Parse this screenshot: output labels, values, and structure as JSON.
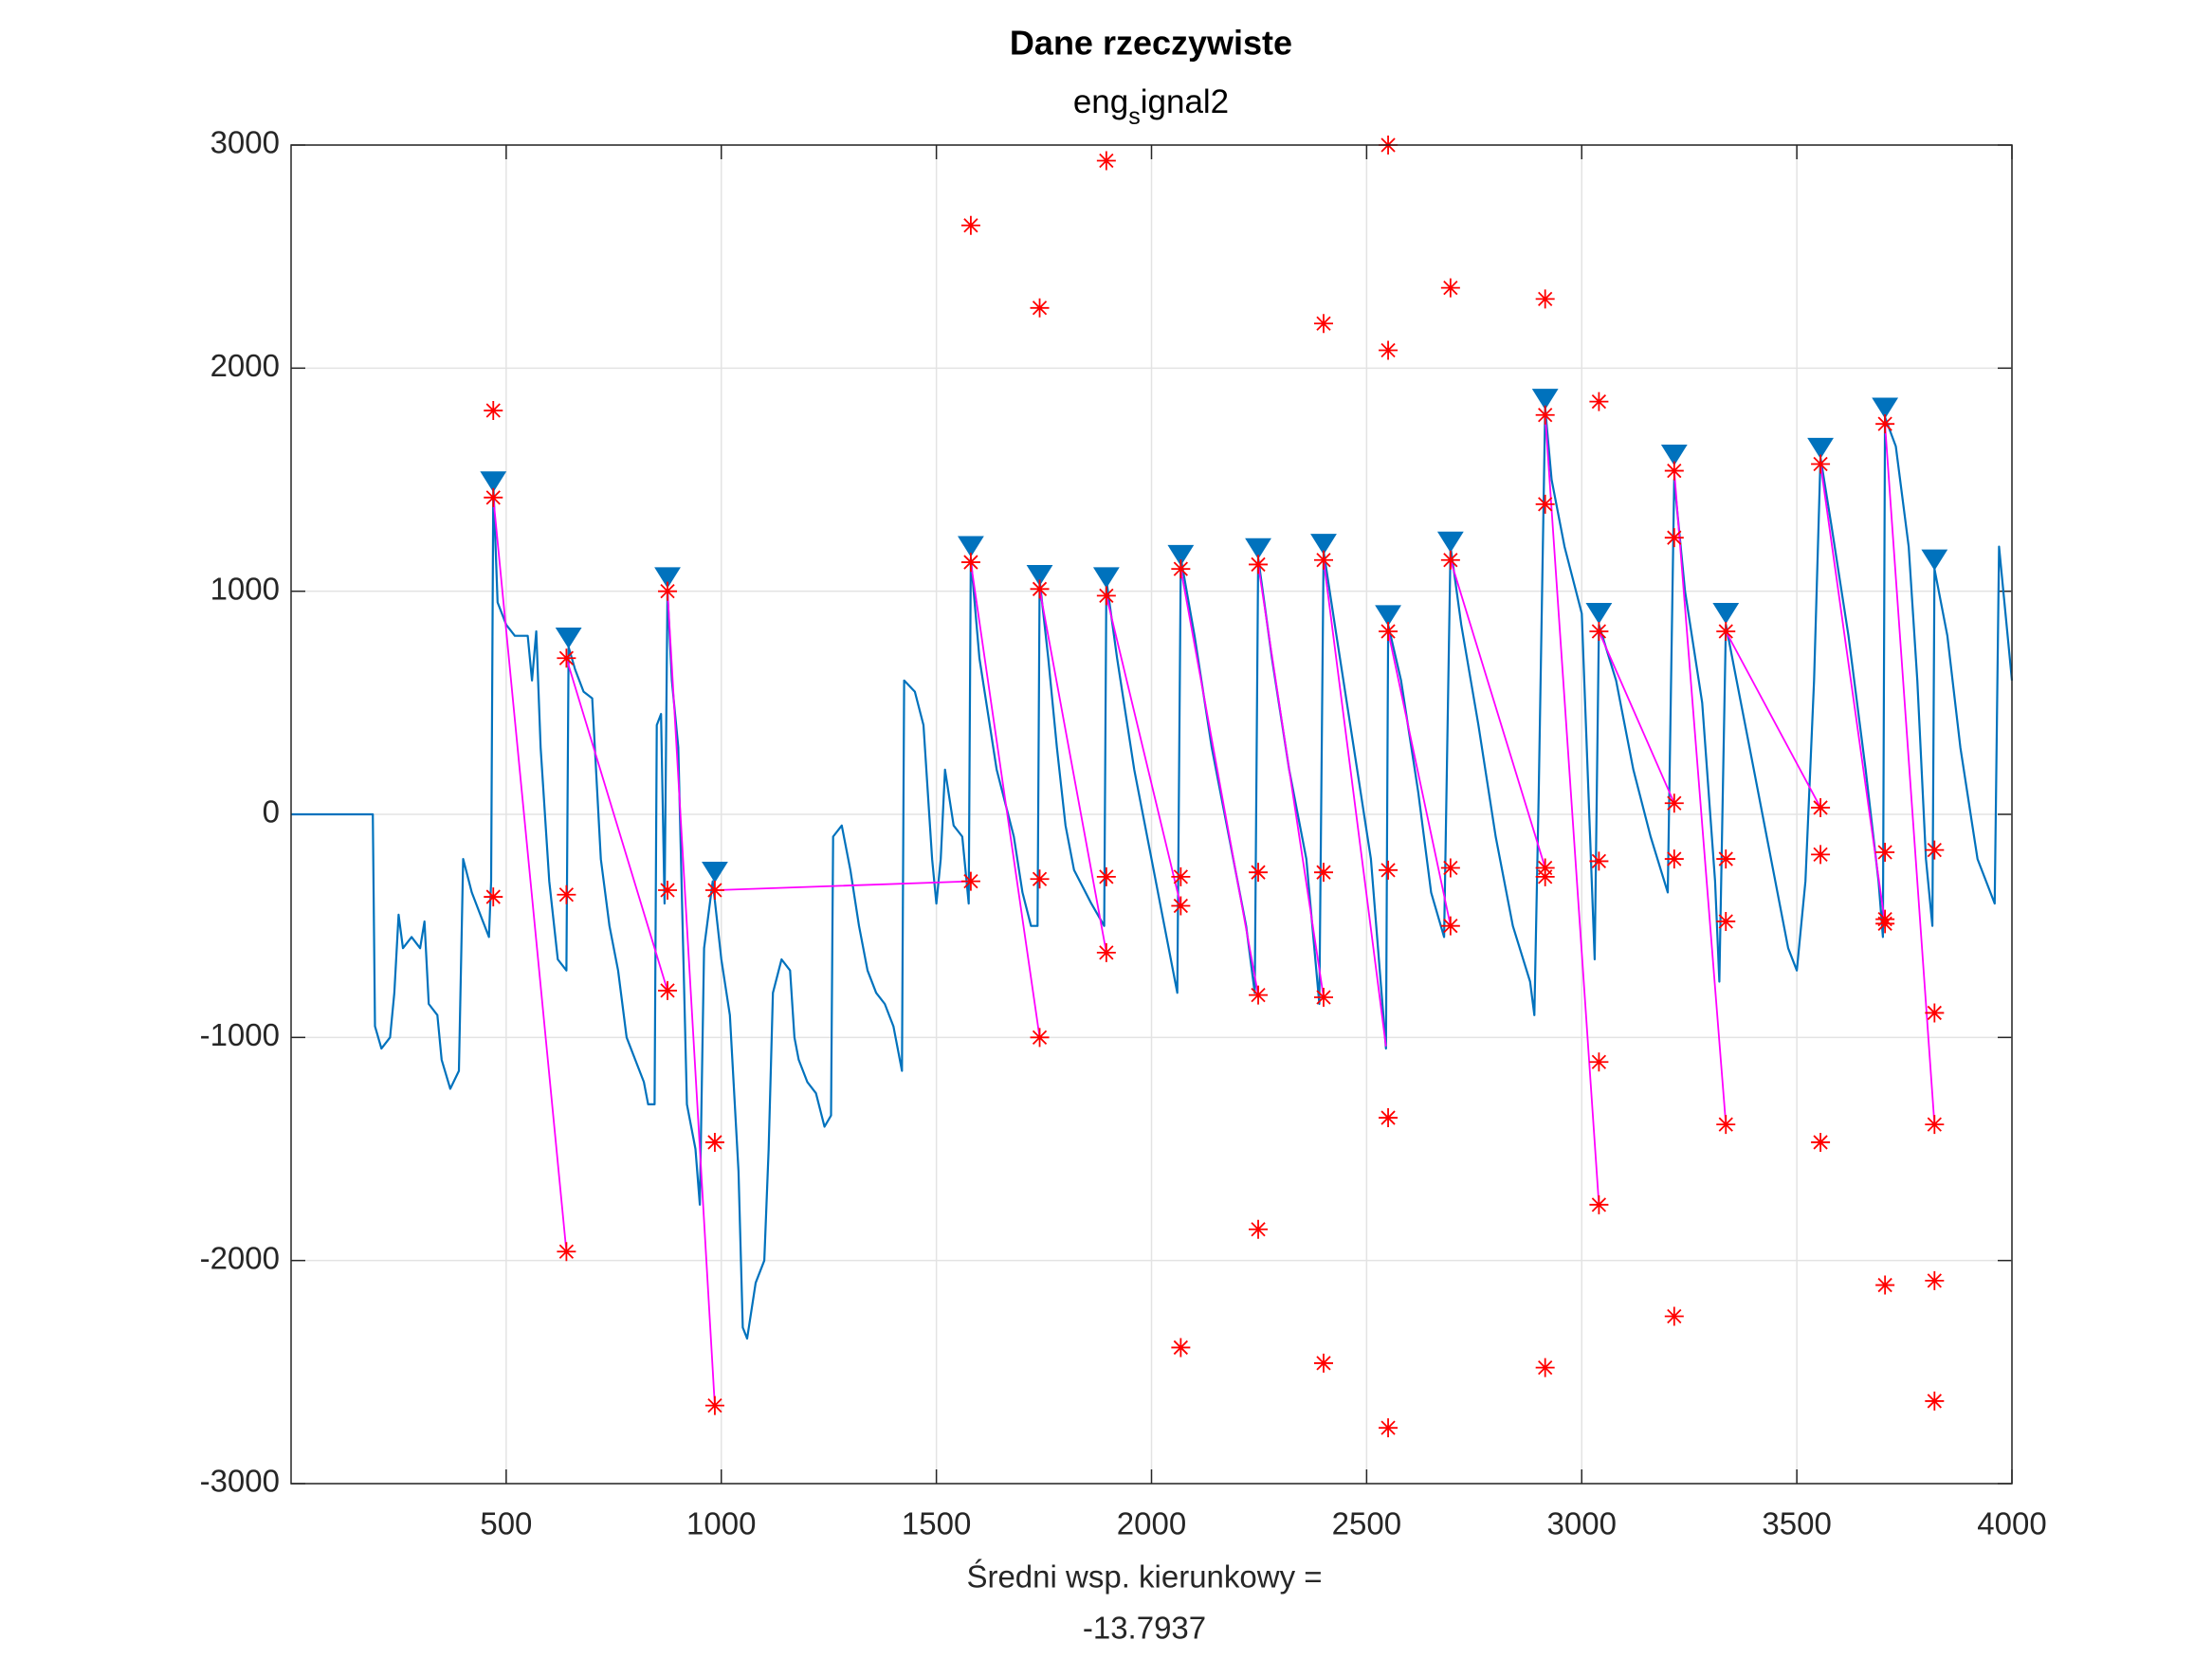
{
  "chart_data": {
    "type": "line",
    "title": "Dane rzeczywiste",
    "subtitle": [
      "eng",
      "s",
      "ignal2"
    ],
    "xlabel": [
      "Średni wsp. kierunkowy =",
      "-13.7937"
    ],
    "xlim": [
      0,
      4000
    ],
    "ylim": [
      -3000,
      3000
    ],
    "xticks": [
      500,
      1000,
      1500,
      2000,
      2500,
      3000,
      3500,
      4000
    ],
    "yticks": [
      -3000,
      -2000,
      -1000,
      0,
      1000,
      2000,
      3000
    ],
    "grid": true,
    "series": [
      {
        "type": "line",
        "color": "#0072bd",
        "x": [
          0,
          190,
          195,
          210,
          230,
          240,
          250,
          260,
          280,
          300,
          310,
          320,
          340,
          350,
          370,
          390,
          400,
          420,
          440,
          460,
          465,
          470,
          480,
          500,
          520,
          550,
          560,
          570,
          580,
          600,
          620,
          640,
          645,
          660,
          680,
          700,
          720,
          740,
          760,
          780,
          800,
          820,
          830,
          845,
          850,
          860,
          868,
          875,
          885,
          900,
          920,
          940,
          950,
          960,
          980,
          1000,
          1020,
          1040,
          1050,
          1060,
          1080,
          1100,
          1110,
          1120,
          1140,
          1160,
          1170,
          1180,
          1200,
          1220,
          1240,
          1255,
          1260,
          1280,
          1300,
          1320,
          1340,
          1360,
          1380,
          1400,
          1420,
          1425,
          1450,
          1470,
          1490,
          1500,
          1510,
          1520,
          1540,
          1560,
          1575,
          1580,
          1600,
          1640,
          1680,
          1700,
          1720,
          1735,
          1740,
          1760,
          1780,
          1800,
          1820,
          1860,
          1890,
          1895,
          1920,
          1960,
          2000,
          2030,
          2060,
          2068,
          2100,
          2140,
          2180,
          2220,
          2240,
          2248,
          2280,
          2320,
          2360,
          2390,
          2400,
          2430,
          2470,
          2510,
          2545,
          2550,
          2580,
          2620,
          2650,
          2680,
          2695,
          2720,
          2760,
          2800,
          2840,
          2880,
          2890,
          2900,
          2915,
          2930,
          2960,
          3000,
          3030,
          3040,
          3080,
          3120,
          3160,
          3200,
          3215,
          3240,
          3280,
          3310,
          3320,
          3335,
          3360,
          3400,
          3440,
          3480,
          3500,
          3520,
          3540,
          3555,
          3580,
          3620,
          3660,
          3690,
          3700,
          3705,
          3730,
          3760,
          3780,
          3800,
          3815,
          3820,
          3850,
          3880,
          3920,
          3960,
          3970,
          4000
        ],
        "values": [
          0,
          0,
          -950,
          -1050,
          -1000,
          -800,
          -450,
          -600,
          -550,
          -600,
          -480,
          -850,
          -900,
          -1100,
          -1230,
          -1150,
          -200,
          -350,
          -450,
          -550,
          -300,
          1480,
          950,
          850,
          800,
          800,
          600,
          820,
          300,
          -300,
          -650,
          -700,
          750,
          650,
          550,
          520,
          -200,
          -500,
          -700,
          -1000,
          -1100,
          -1200,
          -1300,
          -1300,
          400,
          450,
          -400,
          1000,
          600,
          300,
          -1300,
          -1500,
          -1750,
          -600,
          -300,
          -650,
          -900,
          -1600,
          -2300,
          -2350,
          -2100,
          -2000,
          -1500,
          -800,
          -650,
          -700,
          -1000,
          -1100,
          -1200,
          -1250,
          -1400,
          -1350,
          -100,
          -50,
          -250,
          -500,
          -700,
          -800,
          -850,
          -950,
          -1150,
          600,
          550,
          400,
          -200,
          -400,
          -200,
          200,
          -50,
          -100,
          -400,
          1150,
          700,
          200,
          -100,
          -350,
          -500,
          -500,
          1050,
          700,
          300,
          -50,
          -250,
          -400,
          -500,
          1050,
          700,
          200,
          -200,
          -500,
          -800,
          1150,
          800,
          300,
          -100,
          -500,
          -800,
          1150,
          700,
          200,
          -200,
          -850,
          1180,
          800,
          300,
          -200,
          -1050,
          850,
          600,
          100,
          -350,
          -550,
          1200,
          850,
          400,
          -100,
          -500,
          -750,
          -900,
          100,
          1820,
          1500,
          1200,
          900,
          -650,
          850,
          600,
          200,
          -100,
          -350,
          1500,
          1000,
          500,
          -300,
          -750,
          850,
          600,
          200,
          -200,
          -600,
          -700,
          -300,
          600,
          1600,
          1300,
          800,
          200,
          -300,
          -550,
          1780,
          1650,
          1200,
          600,
          -200,
          -500,
          1100,
          800,
          300,
          -200,
          -400,
          1200,
          600
        ]
      },
      {
        "type": "line",
        "color": "#ff00ff",
        "x": [
          470,
          640,
          null,
          640,
          875,
          null,
          875,
          985,
          null,
          985,
          1580,
          null,
          1580,
          1740,
          null,
          1740,
          1895,
          null,
          1895,
          2068,
          null,
          2068,
          2248,
          null,
          2248,
          2400,
          null,
          2400,
          2545,
          null,
          2550,
          2695,
          null,
          2695,
          2915,
          null,
          2915,
          3040,
          null,
          3040,
          3215,
          null,
          3215,
          3335,
          null,
          3335,
          3555,
          null,
          3555,
          3705,
          null,
          3705,
          3820
        ],
        "values": [
          1420,
          -1960,
          null,
          700,
          -790,
          null,
          1000,
          -2650,
          null,
          -340,
          -300,
          null,
          1130,
          -1000,
          null,
          1010,
          -620,
          null,
          980,
          -410,
          null,
          1100,
          -810,
          null,
          1120,
          -820,
          null,
          1140,
          -1040,
          null,
          820,
          -500,
          null,
          1140,
          -240,
          null,
          1790,
          -1750,
          null,
          820,
          50,
          null,
          1540,
          -1390,
          null,
          820,
          30,
          null,
          1570,
          -490,
          null,
          1750,
          -1390
        ]
      },
      {
        "type": "scatter",
        "marker": "v",
        "color": "#0072bd",
        "x": [
          470,
          645,
          875,
          985,
          1580,
          1740,
          1895,
          2068,
          2248,
          2400,
          2550,
          2695,
          2915,
          3040,
          3215,
          3335,
          3555,
          3705,
          3820
        ],
        "values": [
          1480,
          780,
          1050,
          -270,
          1190,
          1060,
          1050,
          1150,
          1180,
          1200,
          880,
          1210,
          1850,
          890,
          1600,
          890,
          1630,
          1810,
          1130
        ]
      },
      {
        "type": "scatter",
        "marker": "*",
        "color": "#ff0000",
        "x": [
          470,
          470,
          470,
          640,
          640,
          640,
          875,
          875,
          875,
          985,
          985,
          985,
          1580,
          1580,
          1580,
          1740,
          1740,
          1740,
          1740,
          1895,
          1895,
          1895,
          1895,
          2068,
          2068,
          2068,
          2068,
          2248,
          2248,
          2248,
          2248,
          2400,
          2400,
          2400,
          2400,
          2400,
          2550,
          2550,
          2550,
          2550,
          2550,
          2550,
          2695,
          2695,
          2695,
          2695,
          2915,
          2915,
          2915,
          2915,
          2915,
          2915,
          3040,
          3040,
          3040,
          3040,
          3040,
          3215,
          3215,
          3215,
          3215,
          3215,
          3335,
          3335,
          3335,
          3335,
          3555,
          3555,
          3555,
          3555,
          3705,
          3705,
          3705,
          3705,
          3705,
          3820,
          3820,
          3820,
          3820,
          3820
        ],
        "values": [
          1810,
          1420,
          -370,
          700,
          -360,
          -1960,
          1000,
          -340,
          -790,
          -340,
          -1470,
          -2650,
          2640,
          1130,
          -300,
          2270,
          1010,
          -290,
          -1000,
          2930,
          980,
          -280,
          -620,
          1100,
          -280,
          -410,
          -2390,
          1120,
          -260,
          -810,
          -1860,
          2200,
          1140,
          -260,
          -820,
          -2460,
          3000,
          2080,
          820,
          -250,
          -1360,
          -2750,
          2360,
          1140,
          -240,
          -500,
          2310,
          1790,
          1390,
          -240,
          -280,
          -2480,
          1850,
          820,
          -210,
          -1110,
          -1750,
          1540,
          1240,
          50,
          -200,
          -2250,
          820,
          -200,
          -480,
          -1390,
          1570,
          30,
          -180,
          -1470,
          1750,
          -170,
          -470,
          -490,
          -2110,
          -160,
          -890,
          -1390,
          -2090,
          -2630
        ]
      }
    ]
  }
}
